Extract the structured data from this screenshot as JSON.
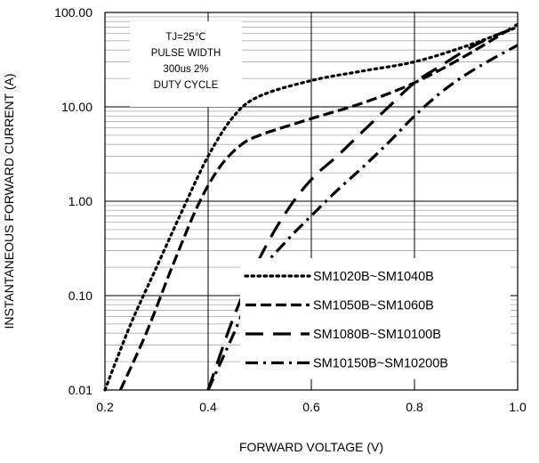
{
  "chart_data": {
    "type": "line",
    "x_scale": "linear",
    "y_scale": "log",
    "xlim": [
      0.2,
      1.0
    ],
    "ylim": [
      0.01,
      100
    ],
    "xlabel": "FORWARD VOLTAGE (V)",
    "ylabel": "INSTANTANEOUS FORWARD CURRENT (A)",
    "x_ticks": [
      "0.2",
      "0.4",
      "0.6",
      "0.8",
      "1.0"
    ],
    "y_ticks": [
      "0.01",
      "0.10",
      "1.00",
      "10.00",
      "100.00"
    ],
    "grid": "major and minor (log)",
    "legend_position": "bottom-right",
    "annotation": [
      "TJ=25℃",
      "PULSE WIDTH",
      "300us 2%",
      "DUTY CYCLE"
    ],
    "series": [
      {
        "name": "SM1020B~SM1040B",
        "style": "dotted",
        "points": [
          [
            0.2,
            0.01
          ],
          [
            0.25,
            0.05
          ],
          [
            0.3,
            0.2
          ],
          [
            0.35,
            0.8
          ],
          [
            0.4,
            3
          ],
          [
            0.45,
            8
          ],
          [
            0.5,
            13
          ],
          [
            0.6,
            19
          ],
          [
            0.7,
            24
          ],
          [
            0.8,
            30
          ],
          [
            0.9,
            44
          ],
          [
            1.0,
            70
          ]
        ]
      },
      {
        "name": "SM1050B~SM1060B",
        "style": "dashed",
        "points": [
          [
            0.23,
            0.01
          ],
          [
            0.28,
            0.04
          ],
          [
            0.33,
            0.2
          ],
          [
            0.38,
            0.9
          ],
          [
            0.42,
            2.2
          ],
          [
            0.46,
            3.8
          ],
          [
            0.5,
            5
          ],
          [
            0.6,
            7.5
          ],
          [
            0.7,
            11
          ],
          [
            0.8,
            18
          ],
          [
            0.9,
            35
          ],
          [
            1.0,
            75
          ]
        ]
      },
      {
        "name": "SM1080B~SM10100B",
        "style": "long-dashed",
        "points": [
          [
            0.4,
            0.01
          ],
          [
            0.45,
            0.06
          ],
          [
            0.5,
            0.25
          ],
          [
            0.55,
            0.75
          ],
          [
            0.6,
            1.7
          ],
          [
            0.65,
            3
          ],
          [
            0.7,
            5.5
          ],
          [
            0.75,
            10
          ],
          [
            0.8,
            18
          ],
          [
            0.85,
            27
          ],
          [
            0.9,
            40
          ],
          [
            0.95,
            55
          ],
          [
            1.0,
            70
          ]
        ]
      },
      {
        "name": "SM10150B~SM10200B",
        "style": "dash-dot",
        "points": [
          [
            0.4,
            0.01
          ],
          [
            0.45,
            0.04
          ],
          [
            0.5,
            0.17
          ],
          [
            0.55,
            0.37
          ],
          [
            0.6,
            0.7
          ],
          [
            0.65,
            1.3
          ],
          [
            0.7,
            2.3
          ],
          [
            0.75,
            4.2
          ],
          [
            0.8,
            8
          ],
          [
            0.85,
            14
          ],
          [
            0.9,
            22
          ],
          [
            0.95,
            32
          ],
          [
            1.0,
            45
          ]
        ]
      }
    ]
  }
}
